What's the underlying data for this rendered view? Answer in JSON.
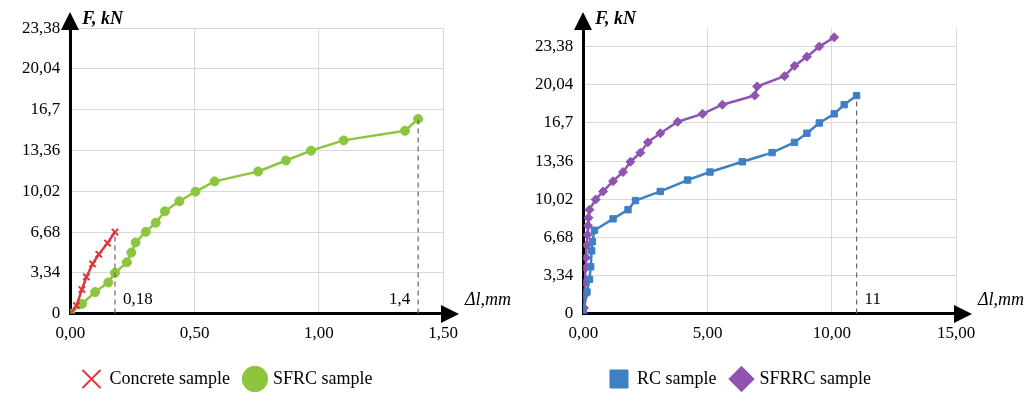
{
  "chart_data": [
    {
      "type": "line",
      "ylabel": "F, kN",
      "xlabel": "Δl,mm",
      "xlim": [
        0,
        1.5
      ],
      "ylim": [
        0,
        23.38
      ],
      "xticks": [
        {
          "value": 0,
          "label": "0,00"
        },
        {
          "value": 0.5,
          "label": "0,50"
        },
        {
          "value": 1,
          "label": "1,00"
        },
        {
          "value": 1.5,
          "label": "1,50"
        }
      ],
      "yticks": [
        0,
        {
          "value": 3.34,
          "label": "3,34"
        },
        {
          "value": 6.68,
          "label": "6,68"
        },
        {
          "value": 10.02,
          "label": "10,02"
        },
        {
          "value": 13.36,
          "label": "13,36"
        },
        {
          "value": 16.7,
          "label": "16,7"
        },
        {
          "value": 20.04,
          "label": "20,04"
        },
        {
          "value": 23.38,
          "label": "23,38"
        }
      ],
      "grid": true,
      "legend": "bottom",
      "ref_lines": [
        {
          "axis": "x",
          "value": 0.18,
          "label": "0,18",
          "line_style": "dashed",
          "color": "#666666"
        },
        {
          "axis": "x",
          "value": 1.4,
          "label": "1,4",
          "line_style": "dashed",
          "color": "#666666"
        }
      ],
      "series": [
        {
          "name": "Concrete sample",
          "color": "#d9393f",
          "marker": "cross",
          "x": [
            0,
            0.025,
            0.047,
            0.065,
            0.09,
            0.115,
            0.15,
            0.18
          ],
          "values": [
            0,
            0.66,
            1.97,
            3.0,
            4.07,
            4.86,
            5.78,
            6.68
          ]
        },
        {
          "name": "SFRC sample",
          "color": "#8cc63e",
          "marker": "circle",
          "x": [
            0,
            0.047,
            0.1,
            0.153,
            0.18,
            0.228,
            0.246,
            0.263,
            0.304,
            0.344,
            0.381,
            0.439,
            0.504,
            0.581,
            0.756,
            0.868,
            0.969,
            1.1,
            1.347,
            1.4
          ],
          "values": [
            0,
            0.79,
            1.76,
            2.55,
            3.34,
            4.2,
            5.0,
            5.83,
            6.7,
            7.44,
            8.38,
            9.2,
            9.99,
            10.83,
            11.64,
            12.54,
            13.35,
            14.19,
            14.98,
            15.95
          ]
        }
      ]
    },
    {
      "type": "line",
      "ylabel": "F, kN",
      "xlabel": "Δl,mm",
      "xlim": [
        0,
        15
      ],
      "ylim": [
        0,
        25
      ],
      "xticks": [
        {
          "value": 0,
          "label": "0,00"
        },
        {
          "value": 5,
          "label": "5,00"
        },
        {
          "value": 10,
          "label": "10,00"
        },
        {
          "value": 15,
          "label": "15,00"
        }
      ],
      "yticks": [
        0,
        {
          "value": 3.34,
          "label": "3,34"
        },
        {
          "value": 6.68,
          "label": "6,68"
        },
        {
          "value": 10.02,
          "label": "10,02"
        },
        {
          "value": 13.36,
          "label": "13,36"
        },
        {
          "value": 16.7,
          "label": "16,7"
        },
        {
          "value": 20.04,
          "label": "20,04"
        },
        {
          "value": 23.38,
          "label": "23,38"
        }
      ],
      "grid": true,
      "legend": "bottom",
      "ref_lines": [
        {
          "axis": "x",
          "value": 11,
          "label": "11",
          "line_style": "dashed",
          "color": "#666666"
        }
      ],
      "series": [
        {
          "name": "RC sample",
          "color": "#3f7fc4",
          "marker": "square",
          "x": [
            0,
            0.15,
            0.25,
            0.3,
            0.34,
            0.37,
            0.45,
            1.2,
            1.8,
            2.1,
            3.1,
            4.2,
            5.1,
            6.4,
            7.6,
            8.5,
            9.0,
            9.5,
            10.1,
            10.5,
            11
          ],
          "values": [
            0,
            1.9,
            3.0,
            4.1,
            5.5,
            6.3,
            7.3,
            8.3,
            9.1,
            9.9,
            10.7,
            11.7,
            12.4,
            13.3,
            14.1,
            15.0,
            15.8,
            16.7,
            17.5,
            18.3,
            19.1
          ]
        },
        {
          "name": "SFRRC sample",
          "color": "#8e54b0",
          "marker": "diamond",
          "x": [
            0,
            0.03,
            0.05,
            0.07,
            0.09,
            0.11,
            0.14,
            0.17,
            0.19,
            0.21,
            0.25,
            0.5,
            0.8,
            1.2,
            1.6,
            1.9,
            2.3,
            2.6,
            3.1,
            3.8,
            4.8,
            5.6,
            6.9,
            7.0,
            8.1,
            8.5,
            9.0,
            9.5,
            10.1
          ],
          "values": [
            0,
            0.5,
            1.6,
            2.7,
            4.0,
            4.9,
            6.0,
            6.9,
            7.7,
            8.4,
            9.1,
            10.0,
            10.7,
            11.6,
            12.4,
            13.3,
            14.1,
            15.0,
            15.8,
            16.8,
            17.5,
            18.3,
            19.1,
            19.9,
            20.8,
            21.7,
            22.5,
            23.4,
            24.2
          ]
        }
      ]
    }
  ]
}
